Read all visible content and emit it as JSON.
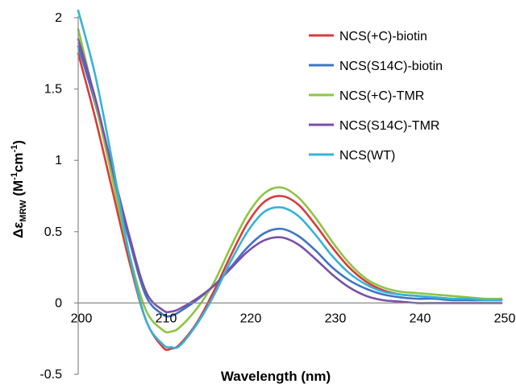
{
  "chart_data": {
    "type": "line",
    "xlabel": "Wavelength (nm)",
    "ylabel": {
      "main": "Δε",
      "sub": "MRW",
      "unit_pre": " (M",
      "sup1": "-1",
      "unit_mid": "cm",
      "sup2": "-1",
      "unit_post": ")"
    },
    "xlim": [
      200,
      250
    ],
    "ylim": [
      -0.5,
      2
    ],
    "x_ticks": [
      200,
      210,
      220,
      230,
      240,
      250
    ],
    "y_ticks": [
      -0.5,
      0,
      0.5,
      1,
      1.5,
      2
    ],
    "y_tick_labels": [
      "-0.5",
      "0",
      "0.5",
      "1",
      "1.5",
      "2"
    ],
    "grid": false,
    "legend_position": "top-right",
    "series": [
      {
        "name": "NCS(+C)-biotin",
        "color": "#d93b3b",
        "x": [
          200,
          202,
          204,
          206,
          208,
          210,
          211,
          212,
          214,
          216,
          218,
          220,
          222,
          224,
          226,
          228,
          230,
          232,
          234,
          236,
          238,
          240,
          242,
          244,
          246,
          248,
          250
        ],
        "y": [
          1.75,
          1.3,
          0.8,
          0.3,
          -0.12,
          -0.31,
          -0.32,
          -0.29,
          -0.14,
          0.08,
          0.33,
          0.56,
          0.71,
          0.75,
          0.69,
          0.55,
          0.39,
          0.25,
          0.15,
          0.09,
          0.06,
          0.05,
          0.04,
          0.03,
          0.02,
          0.02,
          0.02
        ]
      },
      {
        "name": "NCS(S14C)-biotin",
        "color": "#3f74c4",
        "x": [
          200,
          202,
          204,
          206,
          208,
          210,
          211,
          212,
          214,
          216,
          218,
          220,
          222,
          224,
          226,
          228,
          230,
          232,
          234,
          236,
          238,
          240,
          242,
          244,
          246,
          248,
          250
        ],
        "y": [
          1.8,
          1.4,
          0.92,
          0.45,
          0.05,
          -0.08,
          -0.09,
          -0.06,
          0.02,
          0.12,
          0.25,
          0.39,
          0.49,
          0.52,
          0.47,
          0.37,
          0.25,
          0.16,
          0.1,
          0.06,
          0.04,
          0.03,
          0.03,
          0.02,
          0.02,
          0.02,
          0.02
        ]
      },
      {
        "name": "NCS(+C)-TMR",
        "color": "#8dc444",
        "x": [
          200,
          202,
          204,
          206,
          208,
          210,
          211,
          212,
          214,
          216,
          218,
          220,
          222,
          224,
          226,
          228,
          230,
          232,
          234,
          236,
          238,
          240,
          242,
          244,
          246,
          248,
          250
        ],
        "y": [
          1.92,
          1.42,
          0.88,
          0.35,
          -0.05,
          -0.19,
          -0.2,
          -0.17,
          -0.04,
          0.14,
          0.39,
          0.62,
          0.77,
          0.81,
          0.74,
          0.6,
          0.43,
          0.28,
          0.17,
          0.11,
          0.08,
          0.07,
          0.06,
          0.05,
          0.04,
          0.03,
          0.03
        ]
      },
      {
        "name": "NCS(S14C)-TMR",
        "color": "#7a4fa8",
        "x": [
          200,
          202,
          204,
          206,
          208,
          210,
          211,
          212,
          214,
          216,
          218,
          220,
          222,
          224,
          226,
          228,
          230,
          232,
          234,
          236,
          238,
          240,
          242,
          244,
          246,
          248,
          250
        ],
        "y": [
          1.85,
          1.44,
          0.95,
          0.48,
          0.08,
          -0.05,
          -0.06,
          -0.04,
          0.03,
          0.12,
          0.24,
          0.36,
          0.44,
          0.46,
          0.41,
          0.31,
          0.2,
          0.11,
          0.05,
          0.02,
          0.01,
          0.0,
          0.0,
          0.0,
          0.0,
          0.0,
          0.0
        ]
      },
      {
        "name": "NCS(WT)",
        "color": "#35b3d6",
        "x": [
          200,
          202,
          204,
          206,
          208,
          210,
          211,
          212,
          214,
          216,
          218,
          220,
          222,
          224,
          226,
          228,
          230,
          232,
          234,
          236,
          238,
          240,
          242,
          244,
          246,
          248,
          250
        ],
        "y": [
          2.05,
          1.6,
          1.0,
          0.35,
          -0.12,
          -0.29,
          -0.31,
          -0.3,
          -0.15,
          0.05,
          0.29,
          0.5,
          0.64,
          0.67,
          0.61,
          0.48,
          0.33,
          0.21,
          0.13,
          0.08,
          0.06,
          0.05,
          0.04,
          0.03,
          0.03,
          0.02,
          0.02
        ]
      }
    ]
  }
}
